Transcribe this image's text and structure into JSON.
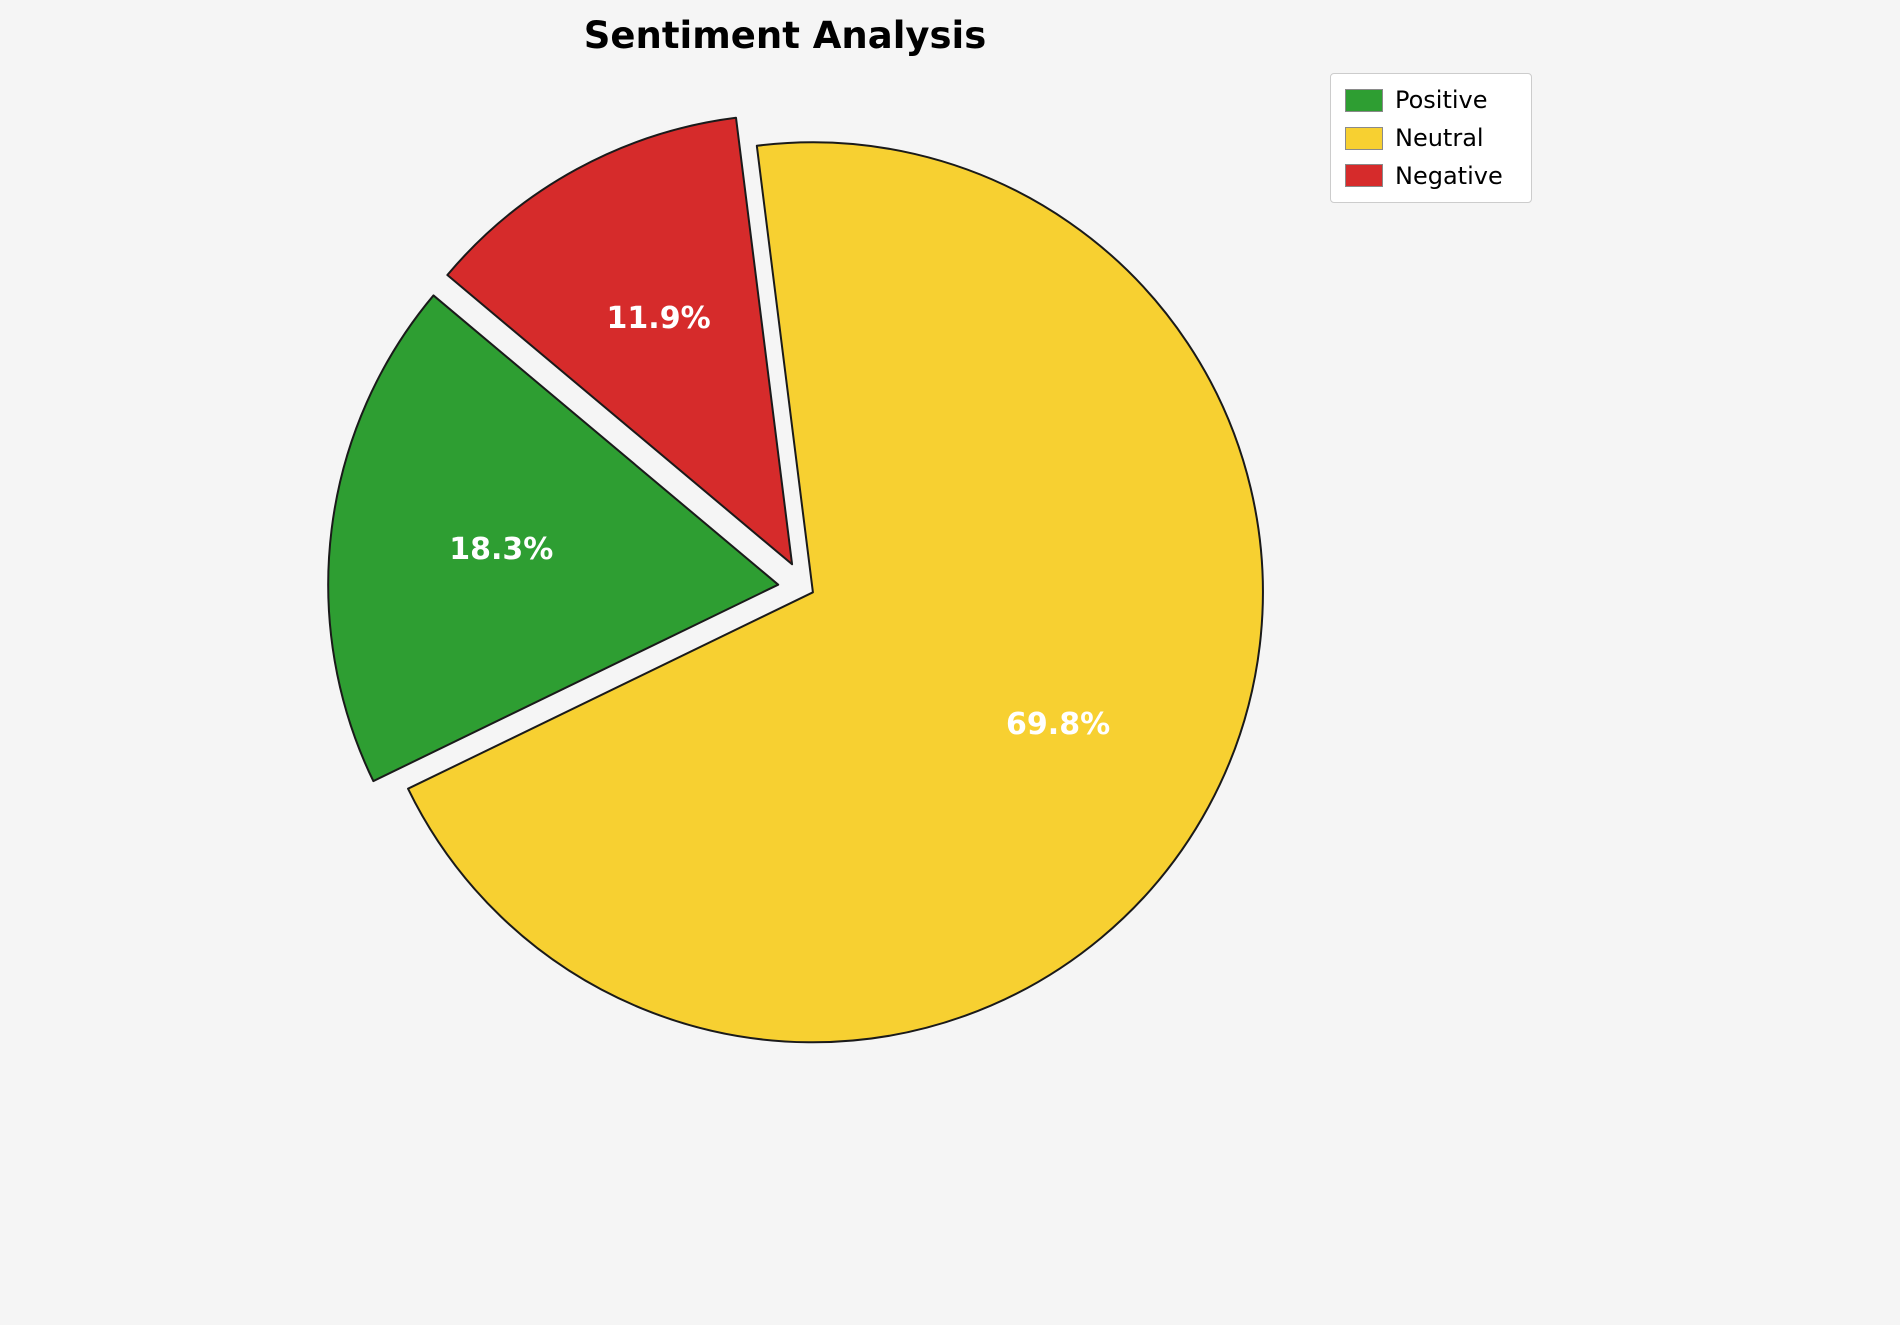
{
  "title": "Sentiment Analysis",
  "background_color": "#f5f5f5",
  "chart_data": {
    "type": "pie",
    "title": "Sentiment Analysis",
    "labels": [
      "Positive",
      "Neutral",
      "Negative"
    ],
    "values": [
      18.3,
      69.8,
      11.9
    ],
    "display_labels": [
      "18.3%",
      "69.8%",
      "11.9%"
    ],
    "colors": [
      "#2e9e32",
      "#f7d031",
      "#d62b2b"
    ],
    "start_angle": 140,
    "direction": "counterclockwise",
    "explode": [
      0.06,
      0.02,
      0.06
    ],
    "label_distance": 0.62,
    "label_color": "#ffffff",
    "slice_edge_color": "#1a1a1a",
    "legend_position": "upper right",
    "legend_entries": [
      "Positive",
      "Neutral",
      "Negative"
    ]
  }
}
